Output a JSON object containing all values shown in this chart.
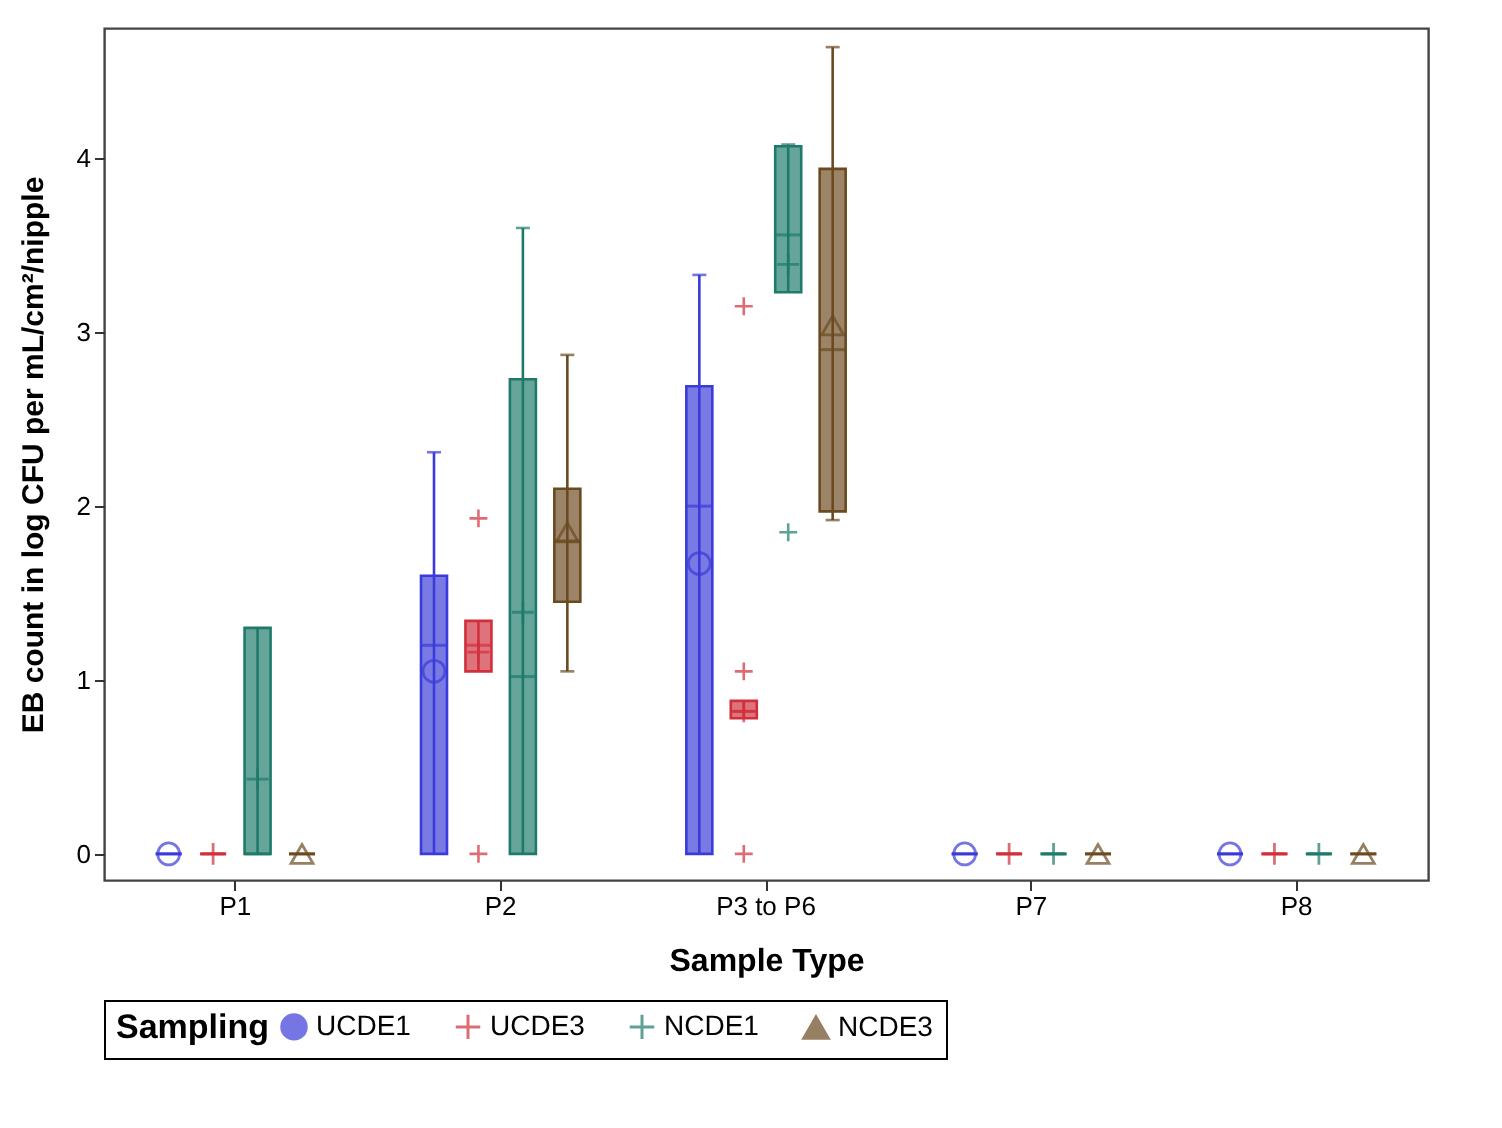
{
  "chart_data": {
    "type": "box",
    "xlabel": "Sample Type",
    "ylabel": "EB count in log CFU per mL/cm²/nipple",
    "legend_title": "Sampling",
    "legend": "bottom",
    "grid": false,
    "categories": [
      "P1",
      "P2",
      "P3 to P6",
      "P7",
      "P8"
    ],
    "ylim": [
      -0.15,
      4.75
    ],
    "yticks": [
      0,
      1,
      2,
      3,
      4
    ],
    "series": [
      {
        "name": "UCDE1",
        "color": "#3b3bd9",
        "marker": "circle",
        "boxes": [
          {
            "low": 0,
            "q1": 0,
            "median": 0,
            "q3": 0,
            "high": 0,
            "mean": 0
          },
          {
            "low": 0,
            "q1": 0,
            "median": 1.2,
            "q3": 1.6,
            "high": 2.31,
            "mean": 1.05
          },
          {
            "low": 0,
            "q1": 0,
            "median": 2.0,
            "q3": 2.69,
            "high": 3.33,
            "mean": 1.67
          },
          {
            "low": 0,
            "q1": 0,
            "median": 0,
            "q3": 0,
            "high": 0,
            "mean": 0
          },
          {
            "low": 0,
            "q1": 0,
            "median": 0,
            "q3": 0,
            "high": 0,
            "mean": 0
          }
        ]
      },
      {
        "name": "UCDE3",
        "color": "#d0303c",
        "marker": "cross",
        "boxes": [
          {
            "low": 0,
            "q1": 0,
            "median": 0,
            "q3": 0,
            "high": 0,
            "mean": 0
          },
          {
            "low": 1.05,
            "q1": 1.05,
            "median": 1.2,
            "q3": 1.34,
            "high": 1.34,
            "mean": 1.16,
            "outliers": [
              1.93,
              0
            ]
          },
          {
            "low": 0.78,
            "q1": 0.78,
            "median": 0.82,
            "q3": 0.88,
            "high": 0.88,
            "mean": 0.82,
            "outliers": [
              3.15,
              1.05,
              0
            ]
          },
          {
            "low": 0,
            "q1": 0,
            "median": 0,
            "q3": 0,
            "high": 0,
            "mean": 0
          },
          {
            "low": 0,
            "q1": 0,
            "median": 0,
            "q3": 0,
            "high": 0,
            "mean": 0
          }
        ]
      },
      {
        "name": "NCDE1",
        "color": "#1e7a6a",
        "marker": "cross",
        "boxes": [
          {
            "low": 0,
            "q1": 0,
            "median": 0,
            "q3": 1.3,
            "high": 1.3,
            "mean": 0.43
          },
          {
            "low": 0,
            "q1": 0,
            "median": 1.02,
            "q3": 2.73,
            "high": 3.6,
            "mean": 1.39
          },
          {
            "low": 3.23,
            "q1": 3.23,
            "median": 3.56,
            "q3": 4.07,
            "high": 4.08,
            "mean": 3.39,
            "outliers": [
              1.85
            ]
          },
          {
            "low": 0,
            "q1": 0,
            "median": 0,
            "q3": 0,
            "high": 0,
            "mean": 0
          },
          {
            "low": 0,
            "q1": 0,
            "median": 0,
            "q3": 0,
            "high": 0,
            "mean": 0
          }
        ]
      },
      {
        "name": "NCDE3",
        "color": "#6b4a20",
        "marker": "triangle",
        "boxes": [
          {
            "low": 0,
            "q1": 0,
            "median": 0,
            "q3": 0,
            "high": 0,
            "mean": 0
          },
          {
            "low": 1.05,
            "q1": 1.45,
            "median": 1.8,
            "q3": 2.1,
            "high": 2.87,
            "mean": 1.85
          },
          {
            "low": 1.92,
            "q1": 1.97,
            "median": 2.9,
            "q3": 3.94,
            "high": 4.64,
            "mean": 3.04
          },
          {
            "low": 0,
            "q1": 0,
            "median": 0,
            "q3": 0,
            "high": 0,
            "mean": 0
          },
          {
            "low": 0,
            "q1": 0,
            "median": 0,
            "q3": 0,
            "high": 0,
            "mean": 0
          }
        ]
      }
    ]
  }
}
